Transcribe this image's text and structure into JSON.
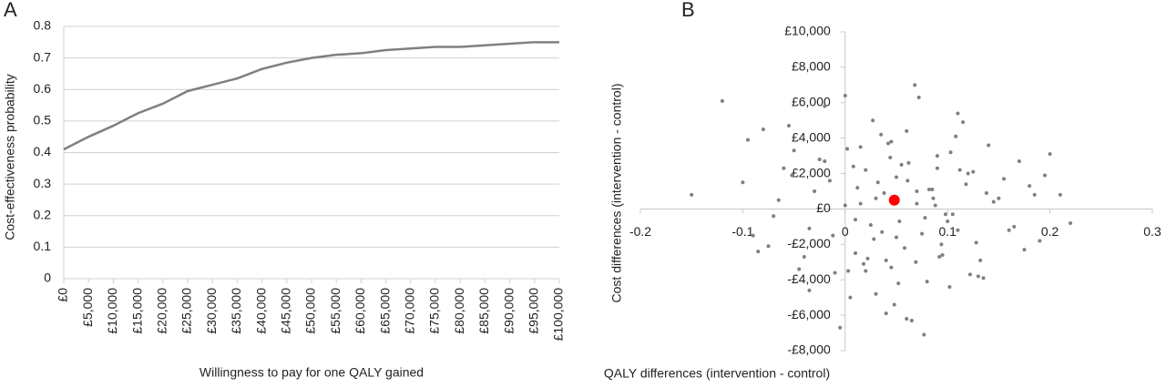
{
  "chart_data": [
    {
      "type": "line",
      "panel_label": "A",
      "x_label": "Willingness to pay for one QALY gained",
      "y_label": "Cost-effectiveness probability",
      "x": [
        0,
        5000,
        10000,
        15000,
        20000,
        25000,
        30000,
        35000,
        40000,
        45000,
        50000,
        55000,
        60000,
        65000,
        70000,
        75000,
        80000,
        85000,
        90000,
        95000,
        100000
      ],
      "values": [
        0.41,
        0.45,
        0.485,
        0.525,
        0.555,
        0.595,
        0.615,
        0.635,
        0.665,
        0.685,
        0.7,
        0.71,
        0.715,
        0.725,
        0.73,
        0.735,
        0.735,
        0.74,
        0.745,
        0.75,
        0.75
      ],
      "color": "#808080",
      "xlim": [
        0,
        100000
      ],
      "xticks": [
        {
          "value": 0,
          "label": "£0"
        },
        {
          "value": 5000,
          "label": "£5,000"
        },
        {
          "value": 10000,
          "label": "£10,000"
        },
        {
          "value": 15000,
          "label": "£15,000"
        },
        {
          "value": 20000,
          "label": "£20,000"
        },
        {
          "value": 25000,
          "label": "£25,000"
        },
        {
          "value": 30000,
          "label": "£30,000"
        },
        {
          "value": 35000,
          "label": "£35,000"
        },
        {
          "value": 40000,
          "label": "£40,000"
        },
        {
          "value": 45000,
          "label": "£45,000"
        },
        {
          "value": 50000,
          "label": "£50,000"
        },
        {
          "value": 55000,
          "label": "£55,000"
        },
        {
          "value": 60000,
          "label": "£60,000"
        },
        {
          "value": 65000,
          "label": "£65,000"
        },
        {
          "value": 70000,
          "label": "£70,000"
        },
        {
          "value": 75000,
          "label": "£75,000"
        },
        {
          "value": 80000,
          "label": "£80,000"
        },
        {
          "value": 85000,
          "label": "£85,000"
        },
        {
          "value": 90000,
          "label": "£90,000"
        },
        {
          "value": 95000,
          "label": "£95,000"
        },
        {
          "value": 100000,
          "label": "£100,000"
        }
      ],
      "ylim": [
        0,
        0.8
      ],
      "yticks": [
        0,
        0.1,
        0.2,
        0.3,
        0.4,
        0.5,
        0.6,
        0.7,
        0.8
      ],
      "grid": true
    },
    {
      "type": "scatter",
      "panel_label": "B",
      "x_label": "QALY differences (intervention - control)",
      "y_label": "Cost differences (intervention - control)",
      "color": "#7f7f7f",
      "x": [
        -0.15,
        -0.12,
        -0.1,
        -0.09,
        -0.08,
        -0.07,
        -0.06,
        -0.05,
        -0.04,
        -0.03,
        -0.02,
        -0.01,
        0.0,
        0.01,
        0.02,
        0.03,
        0.04,
        0.05,
        0.06,
        0.07,
        0.08,
        0.09,
        0.1,
        0.11,
        0.12,
        0.13,
        0.14,
        0.15,
        0.16,
        0.17,
        0.18,
        0.19,
        0.2,
        0.21,
        0.22,
        -0.095,
        -0.075,
        -0.055,
        -0.035,
        -0.015,
        0.005,
        0.015,
        0.025,
        0.035,
        0.045,
        0.055,
        0.065,
        0.075,
        0.085,
        0.095,
        0.105,
        0.115,
        0.125,
        0.135,
        0.145,
        0.155,
        0.165,
        0.175,
        0.185,
        0.195,
        -0.045,
        -0.025,
        -0.005,
        0.012,
        0.028,
        0.042,
        0.058,
        0.072,
        0.088,
        0.102,
        0.118,
        0.132,
        -0.065,
        -0.035,
        0.002,
        0.018,
        0.032,
        0.048,
        0.062,
        0.078,
        0.092,
        0.108,
        0.122,
        0.138,
        -0.085,
        -0.052,
        -0.012,
        0.008,
        0.022,
        0.038,
        0.052,
        0.068,
        0.082,
        0.098,
        0.112,
        0.128,
        0.003,
        0.015,
        0.027,
        0.036,
        0.044,
        0.053,
        0.061,
        0.069,
        0.077,
        0.086,
        0.094,
        0.103,
        -0.02,
        0.01,
        0.04,
        0.06,
        0.03,
        0.05,
        0.07,
        0.02,
        0.09,
        0.0,
        0.11,
        0.045
      ],
      "values": [
        800,
        6100,
        1500,
        -1500,
        4500,
        -400,
        2300,
        3300,
        -2700,
        1000,
        5800,
        -3600,
        6400,
        -2500,
        2200,
        -4800,
        -5900,
        1800,
        -6200,
        300,
        -4100,
        3000,
        -700,
        5400,
        2000,
        -3800,
        3600,
        600,
        -1200,
        2700,
        1300,
        -1800,
        3100,
        800,
        -800,
        3900,
        -2100,
        4700,
        -4600,
        1600,
        -5000,
        3500,
        -900,
        4200,
        -3300,
        2500,
        -6300,
        -1400,
        1100,
        -2600,
        -300,
        4900,
        2100,
        -3900,
        400,
        1700,
        -1000,
        -2300,
        800,
        1900,
        -3400,
        2800,
        -6700,
        1200,
        -1700,
        3700,
        -2200,
        6300,
        200,
        -4400,
        1400,
        -2900,
        500,
        -1100,
        3400,
        -3100,
        1500,
        -5400,
        2600,
        -500,
        -2700,
        4100,
        -3700,
        900,
        -2400,
        1900,
        -1500,
        2400,
        -2800,
        900,
        -4200,
        7000,
        1100,
        -300,
        2200,
        -1900,
        -3500,
        300,
        5000,
        -1300,
        2900,
        -700,
        1600,
        -3000,
        -7100,
        600,
        -2000,
        3200,
        2700,
        -600,
        -2900,
        4400,
        600,
        -1600,
        1000,
        -3500,
        2300,
        200,
        -1200,
        3800
      ],
      "mean_point": {
        "x": 0.048,
        "y": 500,
        "color": "#ff0000"
      },
      "xlim": [
        -0.2,
        0.3
      ],
      "xticks": [
        -0.2,
        -0.1,
        0,
        0.1,
        0.2,
        0.3
      ],
      "ylim": [
        -8000,
        10000
      ],
      "yticks": [
        {
          "value": -8000,
          "label": "-£8,000"
        },
        {
          "value": -6000,
          "label": "-£6,000"
        },
        {
          "value": -4000,
          "label": "-£4,000"
        },
        {
          "value": -2000,
          "label": "-£2,000"
        },
        {
          "value": 0,
          "label": "£0"
        },
        {
          "value": 2000,
          "label": "£2,000"
        },
        {
          "value": 4000,
          "label": "£4,000"
        },
        {
          "value": 6000,
          "label": "£6,000"
        },
        {
          "value": 8000,
          "label": "£8,000"
        },
        {
          "value": 10000,
          "label": "£10,000"
        }
      ]
    }
  ]
}
